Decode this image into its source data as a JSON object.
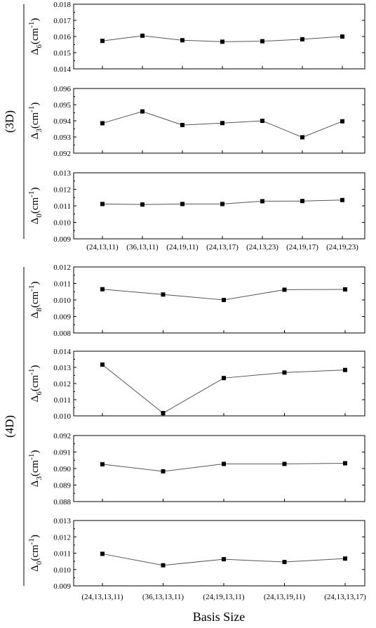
{
  "colors": {
    "line": "#555555",
    "marker": "#000000",
    "frame": "#000000"
  },
  "figure": {
    "xlabel": "Basis Size",
    "groups": [
      {
        "label": "(3D)",
        "categories": [
          "(24,13,11)",
          "(36,13,11)",
          "(24,19,11)",
          "(24,13,17)",
          "(24,13,23)",
          "(24,19,17)",
          "(24,19,23)"
        ]
      },
      {
        "label": "(4D)",
        "categories": [
          "(24,13,13,11)",
          "(36,13,13,11)",
          "(24,19,13,11)",
          "(24,13,19,11)",
          "(24,13,13,17)"
        ]
      }
    ]
  },
  "chart_data": [
    {
      "type": "line",
      "group": "(3D)",
      "ylabel": {
        "symbol": "Δ",
        "sub": "6",
        "unit": "(cm",
        "sup": "-1",
        "close": ")"
      },
      "categories": [
        "(24,13,11)",
        "(36,13,11)",
        "(24,19,11)",
        "(24,13,17)",
        "(24,13,23)",
        "(24,19,17)",
        "(24,19,23)"
      ],
      "values": [
        0.01573,
        0.01605,
        0.01577,
        0.01568,
        0.01571,
        0.01583,
        0.016
      ],
      "ylim": [
        0.014,
        0.018
      ],
      "yticks": [
        "0.014",
        "0.015",
        "0.016",
        "0.017",
        "0.018"
      ]
    },
    {
      "type": "line",
      "group": "(3D)",
      "ylabel": {
        "symbol": "Δ",
        "sub": "3",
        "unit": "(cm",
        "sup": "-1",
        "close": ")"
      },
      "categories": [
        "(24,13,11)",
        "(36,13,11)",
        "(24,19,11)",
        "(24,13,17)",
        "(24,13,23)",
        "(24,19,17)",
        "(24,19,23)"
      ],
      "values": [
        0.09385,
        0.09458,
        0.09374,
        0.09386,
        0.094,
        0.09298,
        0.09397
      ],
      "ylim": [
        0.092,
        0.096
      ],
      "yticks": [
        "0.092",
        "0.093",
        "0.094",
        "0.095",
        "0.096"
      ]
    },
    {
      "type": "line",
      "group": "(3D)",
      "ylabel": {
        "symbol": "Δ",
        "sub": "0",
        "unit": "(cm",
        "sup": "-1",
        "close": ")"
      },
      "categories": [
        "(24,13,11)",
        "(36,13,11)",
        "(24,19,11)",
        "(24,13,17)",
        "(24,13,23)",
        "(24,19,17)",
        "(24,19,23)"
      ],
      "values": [
        0.01111,
        0.01108,
        0.01111,
        0.01111,
        0.01128,
        0.01129,
        0.01135
      ],
      "ylim": [
        0.009,
        0.013
      ],
      "yticks": [
        "0.009",
        "0.010",
        "0.011",
        "0.012",
        "0.013"
      ]
    },
    {
      "type": "line",
      "group": "(4D)",
      "ylabel": {
        "symbol": "Δ",
        "sub": "8",
        "unit": "(cm",
        "sup": "-1",
        "close": ")"
      },
      "categories": [
        "(24,13,13,11)",
        "(36,13,13,11)",
        "(24,19,13,11)",
        "(24,13,19,11)",
        "(24,13,13,17)"
      ],
      "values": [
        0.01065,
        0.01033,
        0.01,
        0.01062,
        0.01064
      ],
      "ylim": [
        0.008,
        0.012
      ],
      "yticks": [
        "0.008",
        "0.009",
        "0.010",
        "0.011",
        "0.012"
      ]
    },
    {
      "type": "line",
      "group": "(4D)",
      "ylabel": {
        "symbol": "Δ",
        "sub": "6",
        "unit": "(cm",
        "sup": "-1",
        "close": ")"
      },
      "categories": [
        "(24,13,13,11)",
        "(36,13,13,11)",
        "(24,19,13,11)",
        "(24,13,19,11)",
        "(24,13,13,17)"
      ],
      "values": [
        0.01317,
        0.01017,
        0.01234,
        0.01268,
        0.01284
      ],
      "ylim": [
        0.01,
        0.014
      ],
      "yticks": [
        "0.010",
        "0.011",
        "0.012",
        "0.013",
        "0.014"
      ]
    },
    {
      "type": "line",
      "group": "(4D)",
      "ylabel": {
        "symbol": "Δ",
        "sub": "3",
        "unit": "(cm",
        "sup": "-1",
        "close": ")"
      },
      "categories": [
        "(24,13,13,11)",
        "(36,13,13,11)",
        "(24,19,13,11)",
        "(24,13,19,11)",
        "(24,13,13,17)"
      ],
      "values": [
        0.09026,
        0.08983,
        0.09028,
        0.09028,
        0.09032
      ],
      "ylim": [
        0.088,
        0.092
      ],
      "yticks": [
        "0.088",
        "0.089",
        "0.090",
        "0.091",
        "0.092"
      ]
    },
    {
      "type": "line",
      "group": "(4D)",
      "ylabel": {
        "symbol": "Δ",
        "sub": "0",
        "unit": "(cm",
        "sup": "-1",
        "close": ")"
      },
      "categories": [
        "(24,13,13,11)",
        "(36,13,13,11)",
        "(24,19,13,11)",
        "(24,13,19,11)",
        "(24,13,13,17)"
      ],
      "values": [
        0.01096,
        0.01026,
        0.01063,
        0.01046,
        0.01067
      ],
      "ylim": [
        0.009,
        0.013
      ],
      "yticks": [
        "0.009",
        "0.010",
        "0.011",
        "0.012",
        "0.013"
      ]
    }
  ]
}
